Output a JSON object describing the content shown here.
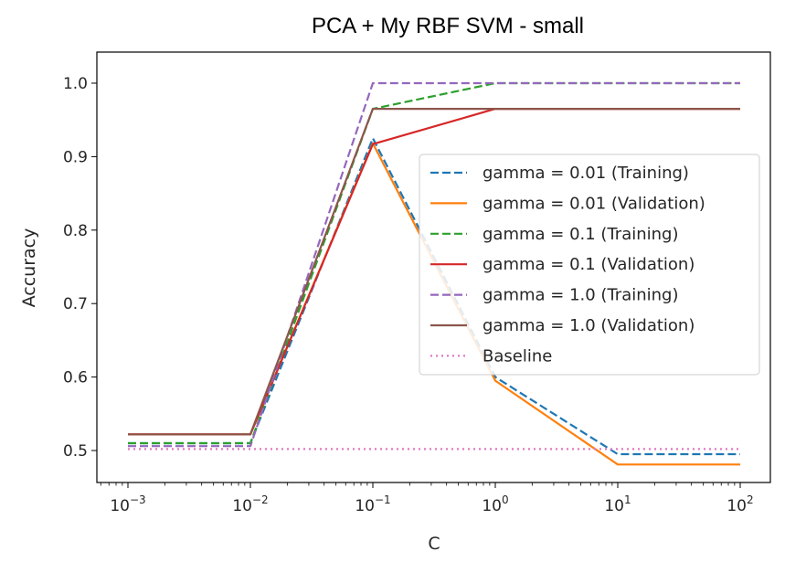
{
  "chart_data": {
    "type": "line",
    "title": "PCA + My RBF SVM - small",
    "xlabel": "C",
    "ylabel": "Accuracy",
    "xscale": "log",
    "x": [
      0.001,
      0.01,
      0.1,
      1,
      10,
      100
    ],
    "xtick_labels": [
      {
        "base": "10",
        "exp": "−3"
      },
      {
        "base": "10",
        "exp": "−2"
      },
      {
        "base": "10",
        "exp": "−1"
      },
      {
        "base": "10",
        "exp": "0"
      },
      {
        "base": "10",
        "exp": "1"
      },
      {
        "base": "10",
        "exp": "2"
      }
    ],
    "ylim": [
      0.47,
      1.05
    ],
    "yticks": [
      "0.5",
      "0.6",
      "0.7",
      "0.8",
      "0.9",
      "1.0"
    ],
    "grid": false,
    "legend_position": "center-right",
    "series": [
      {
        "name": "gamma = 0.01 (Training)",
        "values": [
          0.51,
          0.51,
          0.925,
          0.6,
          0.495,
          0.495
        ],
        "color": "#1f77b4",
        "style": "dashed"
      },
      {
        "name": "gamma = 0.01 (Validation)",
        "values": [
          0.522,
          0.522,
          0.918,
          0.595,
          0.481,
          0.481
        ],
        "color": "#ff7f0e",
        "style": "solid"
      },
      {
        "name": "gamma = 0.1 (Training)",
        "values": [
          0.51,
          0.51,
          0.965,
          1.0,
          1.0,
          1.0
        ],
        "color": "#2ca02c",
        "style": "dashed"
      },
      {
        "name": "gamma = 0.1 (Validation)",
        "values": [
          0.522,
          0.522,
          0.917,
          0.965,
          0.965,
          0.965
        ],
        "color": "#d62728",
        "style": "solid"
      },
      {
        "name": "gamma = 1.0 (Training)",
        "values": [
          0.506,
          0.506,
          1.0,
          1.0,
          1.0,
          1.0
        ],
        "color": "#9467bd",
        "style": "dashed"
      },
      {
        "name": "gamma = 1.0 (Validation)",
        "values": [
          0.522,
          0.522,
          0.965,
          0.965,
          0.965,
          0.965
        ],
        "color": "#8c564b",
        "style": "solid"
      },
      {
        "name": "Baseline",
        "values": [
          0.502,
          0.502,
          0.502,
          0.502,
          0.502,
          0.502
        ],
        "color": "#e377c2",
        "style": "dotted"
      }
    ]
  }
}
